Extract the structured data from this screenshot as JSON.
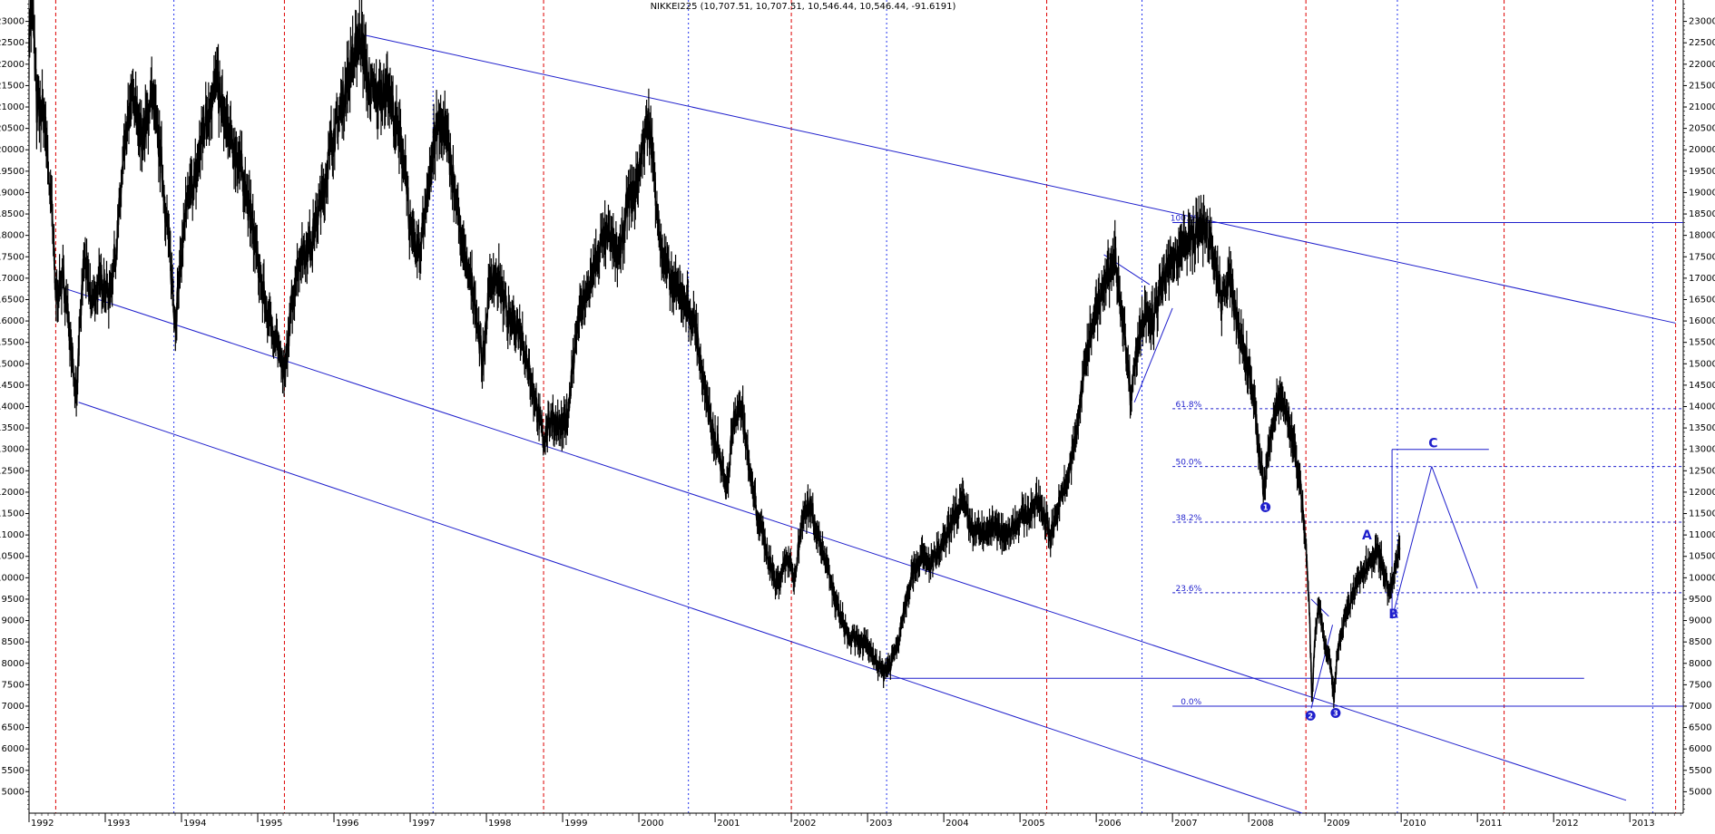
{
  "chart_data": {
    "type": "line",
    "title": "NIKKEI225 (10,707.51, 10,707.51, 10,546.44, 10,546.44, -91.6191)",
    "xlabel": "",
    "ylabel": "",
    "x_range": [
      1992.0,
      2013.7
    ],
    "ylim": [
      4500,
      23500
    ],
    "y_ticks": [
      5000,
      5500,
      6000,
      6500,
      7000,
      7500,
      8000,
      8500,
      9000,
      9500,
      10000,
      10500,
      11000,
      11500,
      12000,
      12500,
      13000,
      13500,
      14000,
      14500,
      15000,
      15500,
      16000,
      16500,
      17000,
      17500,
      18000,
      18500,
      19000,
      19500,
      20000,
      20500,
      21000,
      21500,
      22000,
      22500,
      23000
    ],
    "x_ticks": [
      "1992",
      "1993",
      "1994",
      "1995",
      "1996",
      "1997",
      "1998",
      "1999",
      "2000",
      "2001",
      "2002",
      "2003",
      "2004",
      "2005",
      "2006",
      "2007",
      "2008",
      "2009",
      "2010",
      "2011",
      "2012",
      "2013"
    ],
    "grid": {
      "red_dashed_x": [
        1992.35,
        1995.35,
        1998.75,
        2002.0,
        2005.35,
        2008.75,
        2011.35,
        2013.6
      ],
      "blue_dotted_x": [
        1993.9,
        1997.3,
        2000.65,
        2003.25,
        2006.6,
        2009.95,
        2013.3
      ]
    },
    "series": [
      {
        "values": [
          [
            1992.0,
            22800
          ],
          [
            1992.05,
            23400
          ],
          [
            1992.1,
            21000
          ],
          [
            1992.2,
            20800
          ],
          [
            1992.3,
            18500
          ],
          [
            1992.35,
            16600
          ],
          [
            1992.45,
            17000
          ],
          [
            1992.55,
            15500
          ],
          [
            1992.62,
            14200
          ],
          [
            1992.72,
            17500
          ],
          [
            1992.82,
            16400
          ],
          [
            1992.95,
            17000
          ],
          [
            1993.05,
            16600
          ],
          [
            1993.15,
            17800
          ],
          [
            1993.25,
            20000
          ],
          [
            1993.35,
            21200
          ],
          [
            1993.5,
            20200
          ],
          [
            1993.6,
            21300
          ],
          [
            1993.72,
            20000
          ],
          [
            1993.85,
            17500
          ],
          [
            1993.92,
            16000
          ],
          [
            1994.05,
            18500
          ],
          [
            1994.2,
            19500
          ],
          [
            1994.3,
            20600
          ],
          [
            1994.45,
            21600
          ],
          [
            1994.6,
            20400
          ],
          [
            1994.75,
            19800
          ],
          [
            1994.85,
            19000
          ],
          [
            1994.95,
            18000
          ],
          [
            1995.05,
            16800
          ],
          [
            1995.15,
            16000
          ],
          [
            1995.25,
            15600
          ],
          [
            1995.35,
            14600
          ],
          [
            1995.45,
            16500
          ],
          [
            1995.55,
            17500
          ],
          [
            1995.7,
            17800
          ],
          [
            1995.85,
            19000
          ],
          [
            1995.95,
            20000
          ],
          [
            1996.1,
            21000
          ],
          [
            1996.2,
            21800
          ],
          [
            1996.35,
            22700
          ],
          [
            1996.45,
            21500
          ],
          [
            1996.55,
            21200
          ],
          [
            1996.7,
            21500
          ],
          [
            1996.82,
            20500
          ],
          [
            1996.95,
            19500
          ],
          [
            1997.0,
            18000
          ],
          [
            1997.12,
            17500
          ],
          [
            1997.22,
            19000
          ],
          [
            1997.35,
            20500
          ],
          [
            1997.45,
            20500
          ],
          [
            1997.55,
            19500
          ],
          [
            1997.7,
            17500
          ],
          [
            1997.85,
            16500
          ],
          [
            1997.95,
            15000
          ],
          [
            1998.05,
            17000
          ],
          [
            1998.15,
            17000
          ],
          [
            1998.3,
            16000
          ],
          [
            1998.45,
            15800
          ],
          [
            1998.6,
            14500
          ],
          [
            1998.75,
            13200
          ],
          [
            1998.85,
            13800
          ],
          [
            1998.95,
            13500
          ],
          [
            1999.05,
            13600
          ],
          [
            1999.2,
            16000
          ],
          [
            1999.35,
            16800
          ],
          [
            1999.5,
            17800
          ],
          [
            1999.6,
            18000
          ],
          [
            1999.75,
            17500
          ],
          [
            1999.85,
            18800
          ],
          [
            1999.95,
            19000
          ],
          [
            2000.05,
            20000
          ],
          [
            2000.12,
            20800
          ],
          [
            2000.2,
            19500
          ],
          [
            2000.3,
            17500
          ],
          [
            2000.45,
            16800
          ],
          [
            2000.6,
            16500
          ],
          [
            2000.75,
            15800
          ],
          [
            2000.85,
            14500
          ],
          [
            2000.95,
            13500
          ],
          [
            2001.05,
            13000
          ],
          [
            2001.15,
            12000
          ],
          [
            2001.25,
            13800
          ],
          [
            2001.35,
            14000
          ],
          [
            2001.45,
            12500
          ],
          [
            2001.55,
            11500
          ],
          [
            2001.7,
            10500
          ],
          [
            2001.8,
            9800
          ],
          [
            2001.95,
            10500
          ],
          [
            2002.05,
            10000
          ],
          [
            2002.15,
            11500
          ],
          [
            2002.25,
            11700
          ],
          [
            2002.35,
            11000
          ],
          [
            2002.5,
            10000
          ],
          [
            2002.6,
            9300
          ],
          [
            2002.75,
            8600
          ],
          [
            2002.9,
            8500
          ],
          [
            2003.0,
            8400
          ],
          [
            2003.1,
            8100
          ],
          [
            2003.2,
            7800
          ],
          [
            2003.3,
            8000
          ],
          [
            2003.4,
            8500
          ],
          [
            2003.5,
            9500
          ],
          [
            2003.6,
            10200
          ],
          [
            2003.7,
            10500
          ],
          [
            2003.8,
            10300
          ],
          [
            2003.9,
            10500
          ],
          [
            2004.05,
            11000
          ],
          [
            2004.15,
            11500
          ],
          [
            2004.25,
            11800
          ],
          [
            2004.35,
            11200
          ],
          [
            2004.5,
            11000
          ],
          [
            2004.65,
            11200
          ],
          [
            2004.8,
            11000
          ],
          [
            2004.95,
            11300
          ],
          [
            2005.1,
            11500
          ],
          [
            2005.25,
            11800
          ],
          [
            2005.4,
            11000
          ],
          [
            2005.55,
            11900
          ],
          [
            2005.65,
            12500
          ],
          [
            2005.75,
            13500
          ],
          [
            2005.85,
            15000
          ],
          [
            2005.95,
            16000
          ],
          [
            2006.05,
            16500
          ],
          [
            2006.15,
            17000
          ],
          [
            2006.25,
            17500
          ],
          [
            2006.35,
            16000
          ],
          [
            2006.45,
            14300
          ],
          [
            2006.55,
            15500
          ],
          [
            2006.65,
            16300
          ],
          [
            2006.75,
            16000
          ],
          [
            2006.85,
            16800
          ],
          [
            2006.95,
            17200
          ],
          [
            2007.05,
            17600
          ],
          [
            2007.2,
            17800
          ],
          [
            2007.35,
            18100
          ],
          [
            2007.45,
            18200
          ],
          [
            2007.55,
            17300
          ],
          [
            2007.65,
            16500
          ],
          [
            2007.75,
            17000
          ],
          [
            2007.85,
            16000
          ],
          [
            2007.95,
            15200
          ],
          [
            2008.05,
            14500
          ],
          [
            2008.12,
            13200
          ],
          [
            2008.2,
            12000
          ],
          [
            2008.28,
            13200
          ],
          [
            2008.36,
            14000
          ],
          [
            2008.44,
            14400
          ],
          [
            2008.52,
            13500
          ],
          [
            2008.6,
            13000
          ],
          [
            2008.68,
            12200
          ],
          [
            2008.75,
            10800
          ],
          [
            2008.8,
            9000
          ],
          [
            2008.83,
            7200
          ],
          [
            2008.87,
            8600
          ],
          [
            2008.92,
            9400
          ],
          [
            2008.97,
            8800
          ],
          [
            2009.02,
            8200
          ],
          [
            2009.07,
            8000
          ],
          [
            2009.12,
            7200
          ],
          [
            2009.17,
            8400
          ],
          [
            2009.25,
            9000
          ],
          [
            2009.35,
            9500
          ],
          [
            2009.45,
            10000
          ],
          [
            2009.55,
            10300
          ],
          [
            2009.62,
            10500
          ],
          [
            2009.7,
            10600
          ],
          [
            2009.78,
            10100
          ],
          [
            2009.85,
            9600
          ],
          [
            2009.92,
            10200
          ],
          [
            2009.98,
            10700
          ]
        ]
      }
    ],
    "annotations": {
      "fib_levels": [
        {
          "label": "100.0%",
          "value": 18300
        },
        {
          "label": "61.8%",
          "value": 13950
        },
        {
          "label": "50.0%",
          "value": 12600
        },
        {
          "label": "38.2%",
          "value": 11300
        },
        {
          "label": "23.6%",
          "value": 9650
        },
        {
          "label": "0.0%",
          "value": 7000
        }
      ],
      "wave_labels": [
        {
          "text": "A",
          "x": 2009.55,
          "y": 10900
        },
        {
          "text": "B",
          "x": 2009.9,
          "y": 9050
        },
        {
          "text": "C",
          "x": 2010.42,
          "y": 13050
        }
      ],
      "circled_labels": [
        {
          "text": "1",
          "x": 2008.22,
          "y": 11650
        },
        {
          "text": "2",
          "x": 2008.81,
          "y": 6780
        },
        {
          "text": "3",
          "x": 2009.14,
          "y": 6840
        }
      ]
    },
    "trendlines": [
      {
        "x1": 1996.35,
        "y1": 22700,
        "x2": 2013.6,
        "y2": 15950
      },
      {
        "x1": 1992.4,
        "y1": 16800,
        "x2": 2012.95,
        "y2": 4800
      },
      {
        "x1": 1992.65,
        "y1": 14100,
        "x2": 2008.7,
        "y2": 4500
      },
      {
        "x1": 2003.2,
        "y1": 7650,
        "x2": 2012.4,
        "y2": 7650
      },
      {
        "x1": 2007.45,
        "y1": 18300,
        "x2": 2013.7,
        "y2": 18300
      },
      {
        "x1": 2006.1,
        "y1": 17550,
        "x2": 2006.7,
        "y2": 16850
      },
      {
        "x1": 2006.5,
        "y1": 14100,
        "x2": 2007.0,
        "y2": 16300
      },
      {
        "x1": 2008.82,
        "y1": 9500,
        "x2": 2009.05,
        "y2": 9100
      },
      {
        "x1": 2008.82,
        "y1": 6950,
        "x2": 2009.1,
        "y2": 8900
      },
      {
        "x1": 2009.88,
        "y1": 9050,
        "x2": 2009.88,
        "y2": 13000
      },
      {
        "x1": 2009.88,
        "y1": 13000,
        "x2": 2011.15,
        "y2": 13000
      },
      {
        "x1": 2009.88,
        "y1": 9050,
        "x2": 2010.4,
        "y2": 12600
      },
      {
        "x1": 2010.4,
        "y1": 12600,
        "x2": 2011.0,
        "y2": 9750
      }
    ],
    "colors": {
      "price": "#000000",
      "lines": "#1f1fcc",
      "red_grid": "#dd0000",
      "blue_grid": "#2233ee"
    }
  }
}
